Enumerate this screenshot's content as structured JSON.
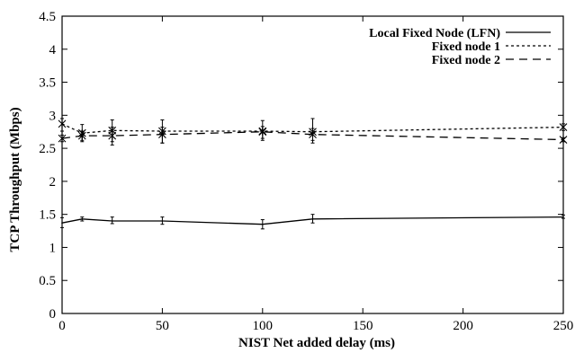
{
  "chart_data": {
    "type": "line",
    "xlabel": "NIST Net added delay (ms)",
    "ylabel": "TCP Throughput (Mbps)",
    "xlim": [
      0,
      250
    ],
    "ylim": [
      0,
      4.5
    ],
    "xticks": [
      0,
      50,
      100,
      150,
      200,
      250
    ],
    "yticks": [
      0,
      0.5,
      1,
      1.5,
      2,
      2.5,
      3,
      3.5,
      4,
      4.5
    ],
    "xtick_labels": [
      "0",
      "50",
      "100",
      "150",
      "200",
      "250"
    ],
    "ytick_labels": [
      "0",
      "0.5",
      "1",
      "1.5",
      "2",
      "2.5",
      "3",
      "3.5",
      "4",
      "4.5"
    ],
    "grid": false,
    "legend_position": "top-right",
    "series": [
      {
        "name": "Local Fixed Node (LFN)",
        "line_style": "solid",
        "x": [
          0,
          10,
          25,
          50,
          100,
          125,
          250
        ],
        "y": [
          1.37,
          1.43,
          1.4,
          1.4,
          1.35,
          1.43,
          1.46
        ],
        "err_low": [
          1.3,
          1.4,
          1.36,
          1.35,
          1.28,
          1.37,
          1.44
        ],
        "err_high": [
          1.45,
          1.46,
          1.46,
          1.46,
          1.42,
          1.5,
          1.49
        ]
      },
      {
        "name": "Fixed node 1",
        "line_style": "dotted",
        "x": [
          0,
          10,
          25,
          50,
          100,
          125,
          250
        ],
        "y": [
          2.87,
          2.73,
          2.77,
          2.76,
          2.76,
          2.75,
          2.82
        ],
        "err_low": [
          2.76,
          2.62,
          2.6,
          2.58,
          2.62,
          2.58,
          2.77
        ],
        "err_high": [
          2.95,
          2.86,
          2.93,
          2.93,
          2.92,
          2.95,
          2.87
        ]
      },
      {
        "name": "Fixed node 2",
        "line_style": "dashed",
        "x": [
          0,
          10,
          25,
          50,
          100,
          125,
          250
        ],
        "y": [
          2.65,
          2.69,
          2.69,
          2.71,
          2.75,
          2.71,
          2.63
        ],
        "err_low": [
          2.6,
          2.6,
          2.55,
          2.58,
          2.65,
          2.62,
          2.6
        ],
        "err_high": [
          2.7,
          2.76,
          2.82,
          2.82,
          2.83,
          2.8,
          2.66
        ]
      }
    ]
  }
}
